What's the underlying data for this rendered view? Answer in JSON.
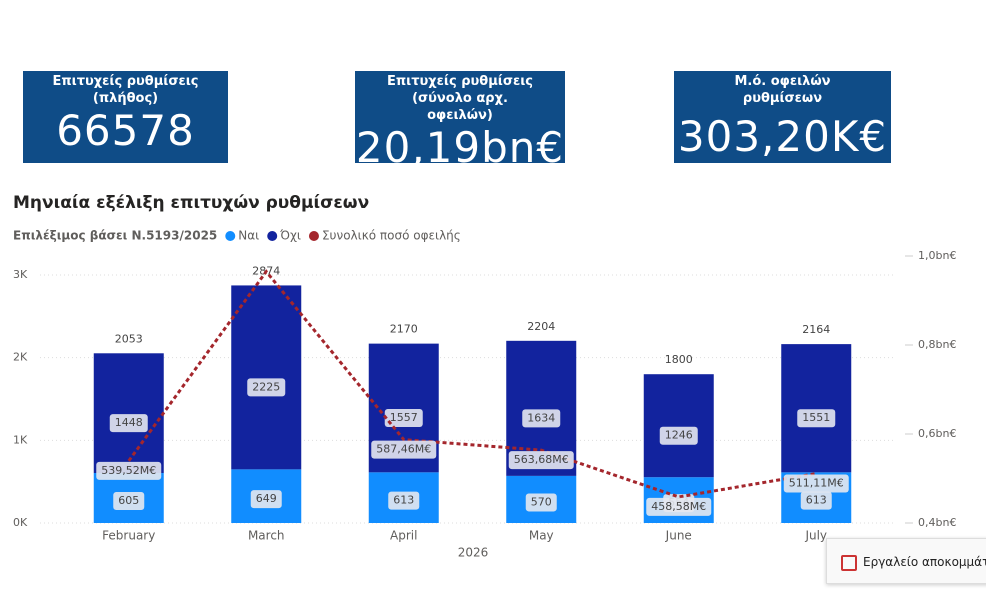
{
  "kpis": [
    {
      "title": "Επιτυχείς ρυθμίσεις (πλήθος)",
      "value": "66578"
    },
    {
      "title": "Επιτυχείς ρυθμίσεις (σύνολο αρχ. οφειλών)",
      "value": "20,19bn€"
    },
    {
      "title": "Μ.ό. οφειλών ρυθμίσεων",
      "value": "303,20K€"
    }
  ],
  "chart_data": {
    "type": "bar",
    "stacked": true,
    "title": "Μηνιαία εξέλιξη επιτυχών ρυθμίσεων",
    "legend_title": "Επιλέξιμος βάσει Ν.5193/2025",
    "x_label": "2026",
    "categories": [
      "February",
      "March",
      "April",
      "May",
      "June",
      "July"
    ],
    "series": [
      {
        "name": "Ναι",
        "color": "#118dff",
        "values": [
          605,
          649,
          613,
          570,
          554,
          613
        ]
      },
      {
        "name": "Όχι",
        "color": "#12239e",
        "values": [
          1448,
          2225,
          1557,
          1634,
          1246,
          1551
        ]
      },
      {
        "name": "Συνολικό ποσό οφειλής",
        "color": "#a4262c",
        "type": "line",
        "axis": "y2",
        "values": [
          539520000,
          965000000,
          587460000,
          563680000,
          458580000,
          511110000
        ],
        "value_labels": [
          "539,52M€",
          null,
          "587,46M€",
          "563,68M€",
          "458,58M€",
          "511,11M€"
        ]
      }
    ],
    "totals": [
      2053,
      2874,
      2170,
      2204,
      1800,
      2164
    ],
    "ylim": [
      0,
      3230
    ],
    "yticks": [
      {
        "value": 0,
        "label": "0K"
      },
      {
        "value": 1000,
        "label": "1K"
      },
      {
        "value": 2000,
        "label": "2K"
      },
      {
        "value": 3000,
        "label": "3K"
      }
    ],
    "y2lim": [
      400000000,
      1000000000
    ],
    "y2ticks": [
      {
        "value": 400000000,
        "label": "0,4bn€"
      },
      {
        "value": 600000000,
        "label": "0,6bn€"
      },
      {
        "value": 800000000,
        "label": "0,8bn€"
      },
      {
        "value": 1000000000,
        "label": "1,0bn€"
      }
    ],
    "grid": true
  },
  "overlay": {
    "text": "Εργαλείο αποκομμάτων"
  }
}
